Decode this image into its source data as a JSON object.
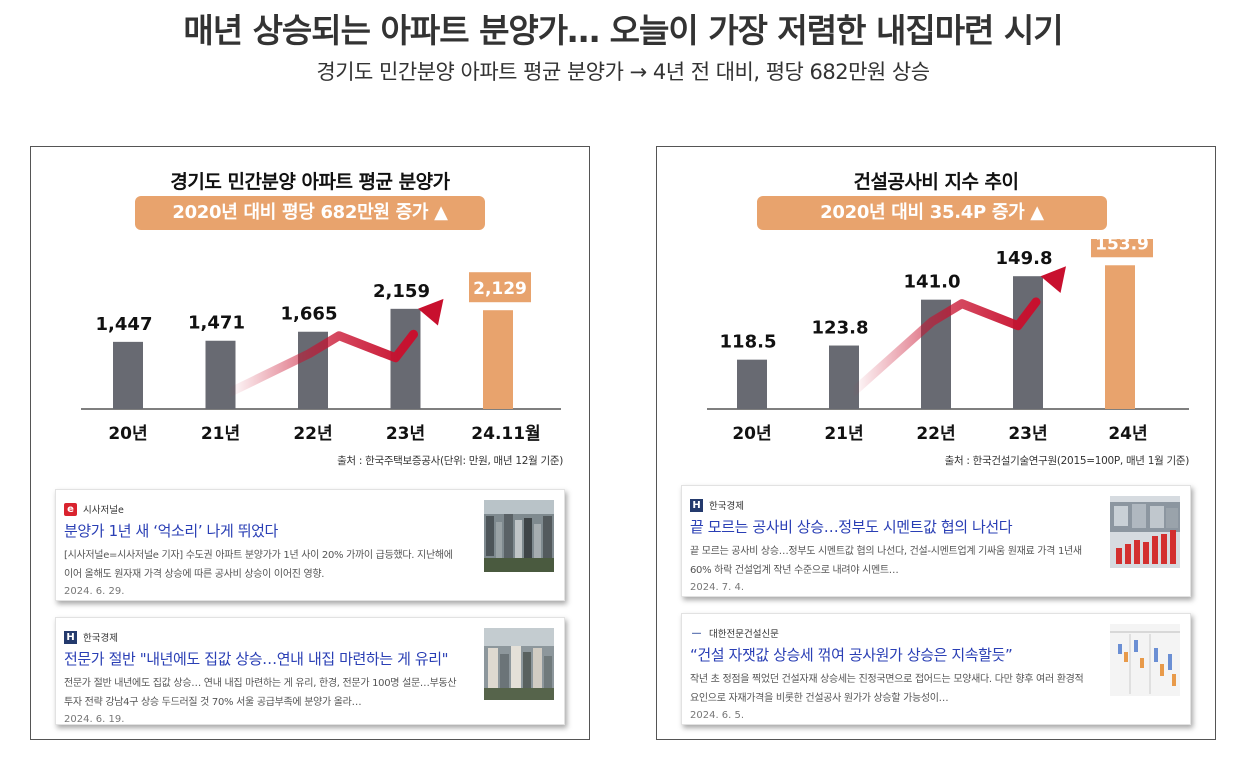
{
  "headline": "매년 상승되는 아파트 분양가… 오늘이 가장 저렴한 내집마련 시기",
  "subheadline": "경기도 민간분양 아파트 평균 분양가 → 4년 전 대비, 평당 682만원 상승",
  "colors": {
    "bar": "#686a72",
    "accent": "#e8a36d",
    "arrow": "#c8102e",
    "link": "#2a3fb5"
  },
  "chart_data": [
    {
      "type": "bar",
      "title": "경기도 민간분양 아파트 평균 분양가",
      "badge": "2020년 대비 평당 682만원 증가 ▲",
      "categories": [
        "20년",
        "21년",
        "22년",
        "23년",
        "24.11월"
      ],
      "values": [
        1447,
        1471,
        1665,
        2159,
        2129
      ],
      "value_labels": [
        "1,447",
        "1,471",
        "1,665",
        "2,159",
        "2,129"
      ],
      "highlight_index": 4,
      "ylim": [
        0,
        2500
      ],
      "source": "출처 : 한국주택보증공사(단위: 만원, 매년 12월 기준)"
    },
    {
      "type": "bar",
      "title": "건설공사비 지수 추이",
      "badge": "2020년 대비 35.4P 증가 ▲",
      "categories": [
        "20년",
        "21년",
        "22년",
        "23년",
        "24년"
      ],
      "values": [
        118.5,
        123.8,
        141.0,
        149.8,
        153.9
      ],
      "value_labels": [
        "118.5",
        "123.8",
        "141.0",
        "149.8",
        "153.9"
      ],
      "highlight_index": 4,
      "ylim": [
        100,
        160
      ],
      "source": "출처 : 한국건설기술연구원(2015=100P, 매년 1월 기준)"
    }
  ],
  "news": {
    "left": [
      {
        "publisher": "시사저널e",
        "logo": "e",
        "logo_icon": "sisajournal-e-logo",
        "title": "분양가 1년 새 ‘억소리’ 나게 뛰었다",
        "summary": "[시사저널e=시사저널e 기자] 수도권 아파트 분양가가 1년 사이 20% 가까이 급등했다. 지난해에 이어 올해도 원자재 가격 상승에 따른 공사비 상승이 이어진 영향.",
        "date": "2024. 6. 29."
      },
      {
        "publisher": "한국경제",
        "logo": "H",
        "logo_icon": "hankyung-logo",
        "title": "전문가 절반 \"내년에도 집값 상승…연내 내집 마련하는 게 유리\"",
        "summary": "전문가 절반 내년에도 집값 상승… 연내 내집 마련하는 게 유리, 한경, 전문가 100명 설문…부동산 투자 전략 강남4구 상승 두드러질 것 70% 서울 공급부족에 분양가 올라…",
        "date": "2024. 6. 19."
      }
    ],
    "right": [
      {
        "publisher": "한국경제",
        "logo": "H",
        "logo_icon": "hankyung-logo",
        "title": "끝 모르는 공사비 상승…정부도 시멘트값 협의 나선다",
        "summary": "끝 모르는 공사비 상승…정부도 시멘트값 협의 나선다, 건설-시멘트업계 기싸움 원재료 가격 1년새 60% 하락 건설업계 작년 수준으로 내려야 시멘트…",
        "date": "2024. 7. 4."
      },
      {
        "publisher": "대한전문건설신문",
        "logo": "—",
        "logo_icon": "dash-logo",
        "title": "“건설 자잿값 상승세 꺾여 공사원가 상승은 지속할듯”",
        "summary": "작년 초 정점을 찍었던 건설자재 상승세는 진정국면으로 접어드는 모양새다. 다만 향후 여러 환경적 요인으로 자재가격을 비롯한 건설공사 원가가 상승할 가능성이…",
        "date": "2024. 6. 5."
      }
    ]
  }
}
